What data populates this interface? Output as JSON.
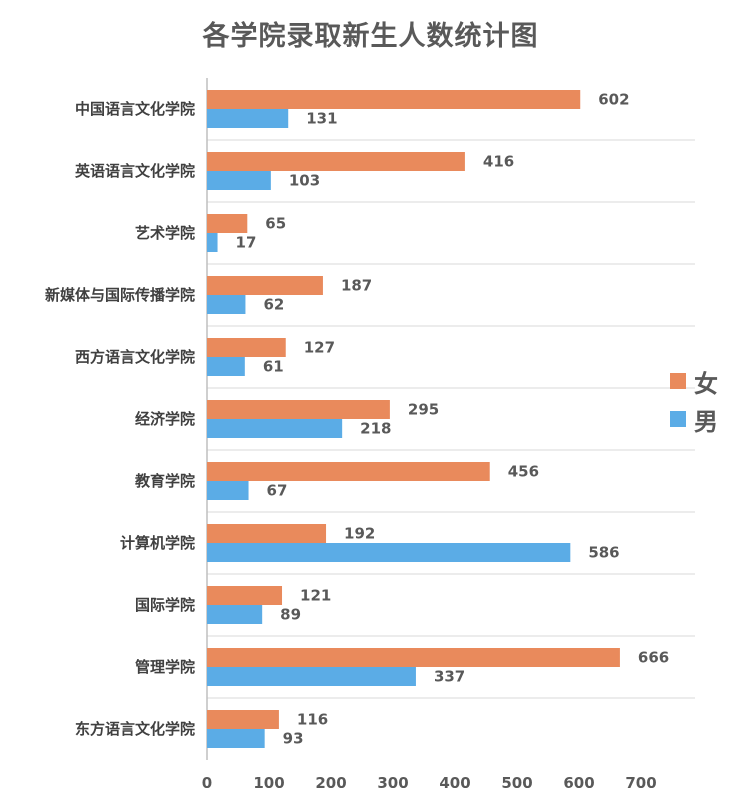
{
  "chart_data": {
    "type": "bar",
    "orientation": "horizontal",
    "title": "各学院录取新生人数统计图",
    "xlabel": "",
    "ylabel": "",
    "xlim": [
      0,
      700
    ],
    "xticks": [
      "0",
      "100",
      "200",
      "300",
      "400",
      "500",
      "600",
      "700"
    ],
    "grid": "horizontal separators between categories",
    "legend_position": "right",
    "categories": [
      "中国语言文化学院",
      "英语语言文化学院",
      "艺术学院",
      "新媒体与国际传播学院",
      "西方语言文化学院",
      "经济学院",
      "教育学院",
      "计算机学院",
      "国际学院",
      "管理学院",
      "东方语言文化学院"
    ],
    "series": [
      {
        "name": "女",
        "color": "#E98A5C",
        "values": [
          602,
          416,
          65,
          187,
          127,
          295,
          456,
          192,
          121,
          666,
          116
        ]
      },
      {
        "name": "男",
        "color": "#5BACE6",
        "values": [
          131,
          103,
          17,
          62,
          61,
          218,
          67,
          586,
          89,
          337,
          93
        ]
      }
    ]
  }
}
